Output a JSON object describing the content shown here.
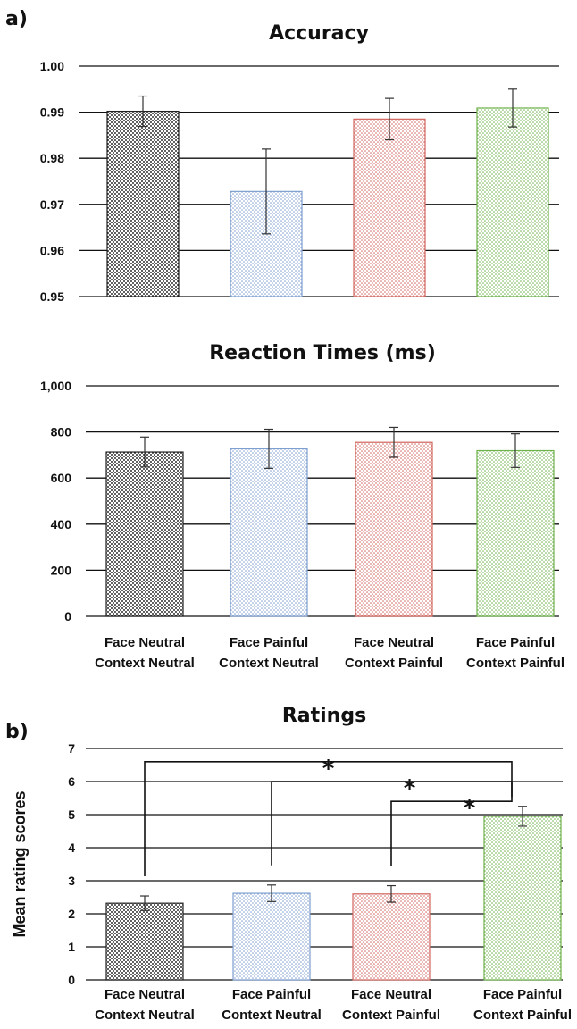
{
  "panel_labels": [
    "a)",
    "b)"
  ],
  "colors": {
    "neutral_neutral": "#222222",
    "painful_neutral": "#7f9fd0",
    "neutral_painful": "#d2665f",
    "painful_painful": "#6eb24b",
    "grid": "#111111"
  },
  "chart_data": [
    {
      "type": "bar",
      "title": "Accuracy",
      "ylabel": "",
      "xlabel": "",
      "ylim": [
        0.95,
        1.0
      ],
      "yticks": [
        "0.95",
        "0.96",
        "0.97",
        "0.98",
        "0.99",
        "1.00"
      ],
      "ytick_values": [
        0.95,
        0.96,
        0.97,
        0.98,
        0.99,
        1.0
      ],
      "categories": [
        [
          "Face Neutral",
          "Context Neutral"
        ],
        [
          "Face Painful",
          "Context Neutral"
        ],
        [
          "Face Neutral",
          "Context Painful"
        ],
        [
          "Face Painful",
          "Context Painful"
        ]
      ],
      "show_category_labels": false,
      "values": [
        0.9902,
        0.9728,
        0.9885,
        0.9909
      ],
      "error": [
        0.0033,
        0.0092,
        0.0045,
        0.0041
      ],
      "grid": true,
      "significance": []
    },
    {
      "type": "bar",
      "title": "Reaction Times (ms)",
      "ylabel": "",
      "xlabel": "",
      "ylim": [
        0,
        1000
      ],
      "yticks": [
        "0",
        "200",
        "400",
        "600",
        "800",
        "1,000"
      ],
      "ytick_values": [
        0,
        200,
        400,
        600,
        800,
        1000
      ],
      "categories": [
        [
          "Face Neutral",
          "Context Neutral"
        ],
        [
          "Face Painful",
          "Context Neutral"
        ],
        [
          "Face Neutral",
          "Context Painful"
        ],
        [
          "Face Painful",
          "Context Painful"
        ]
      ],
      "show_category_labels": true,
      "values": [
        713,
        727,
        755,
        719
      ],
      "error": [
        65,
        85,
        65,
        73
      ],
      "grid": true,
      "significance": []
    },
    {
      "type": "bar",
      "title": "Ratings",
      "ylabel": "Mean rating scores",
      "xlabel": "",
      "ylim": [
        0,
        7
      ],
      "yticks": [
        "0",
        "1",
        "2",
        "3",
        "4",
        "5",
        "6",
        "7"
      ],
      "ytick_values": [
        0,
        1,
        2,
        3,
        4,
        5,
        6,
        7
      ],
      "categories": [
        [
          "Face Neutral",
          "Context Neutral"
        ],
        [
          "Face Painful",
          "Context Neutral"
        ],
        [
          "Face Neutral",
          "Context Painful"
        ],
        [
          "Face Painful",
          "Context Painful"
        ]
      ],
      "show_category_labels": true,
      "values": [
        2.32,
        2.62,
        2.6,
        4.95
      ],
      "error": [
        0.22,
        0.25,
        0.25,
        0.3
      ],
      "grid": true,
      "significance": [
        {
          "from": 0,
          "to": 3,
          "level": 6.6,
          "label": "*"
        },
        {
          "from": 1,
          "to": 3,
          "level": 6.0,
          "label": "*"
        },
        {
          "from": 2,
          "to": 3,
          "level": 5.4,
          "label": "*"
        }
      ]
    }
  ]
}
